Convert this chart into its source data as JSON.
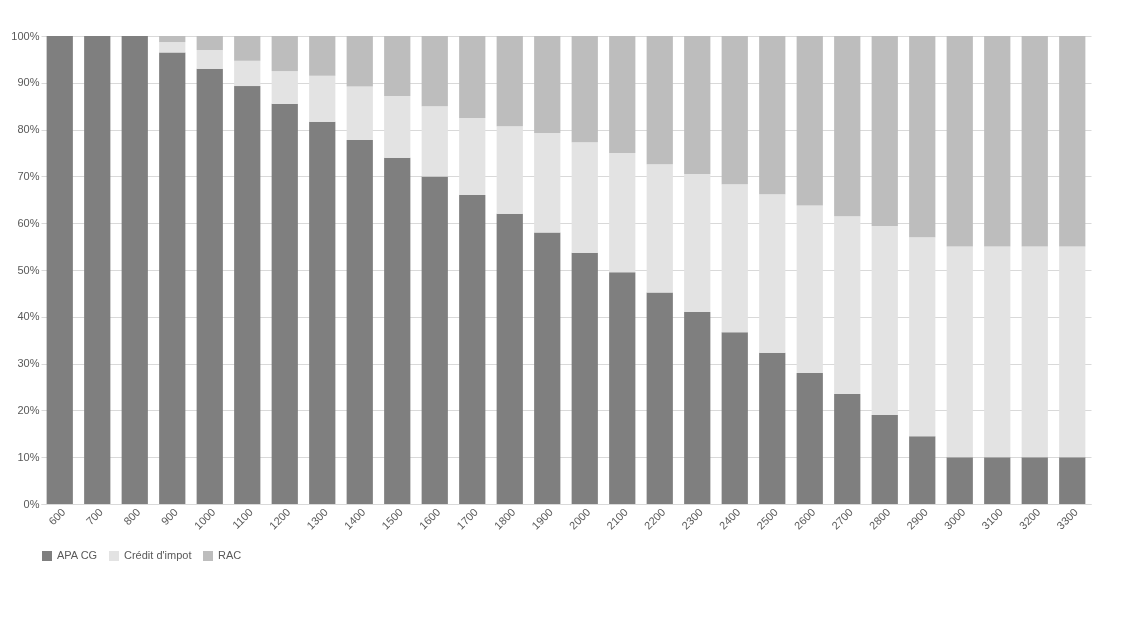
{
  "chart_data": {
    "type": "bar",
    "stacked": true,
    "categories": [
      "600",
      "700",
      "800",
      "900",
      "1000",
      "1100",
      "1200",
      "1300",
      "1400",
      "1500",
      "1600",
      "1700",
      "1800",
      "1900",
      "2000",
      "2100",
      "2200",
      "2300",
      "2400",
      "2500",
      "2600",
      "2700",
      "2800",
      "2900",
      "3000",
      "3100",
      "3200",
      "3300"
    ],
    "series": [
      {
        "name": "APA CG",
        "color": "#7f7f7f",
        "values": [
          100,
          100,
          100,
          96.5,
          93,
          89.3,
          85.5,
          81.7,
          77.8,
          74,
          70,
          66,
          62,
          58,
          53.7,
          49.5,
          45.2,
          41,
          36.7,
          32.3,
          28,
          23.5,
          19,
          14.5,
          10,
          10,
          10,
          10
        ]
      },
      {
        "name": "Crédit d'impot",
        "color": "#e3e3e3",
        "values": [
          0,
          0,
          0,
          2.2,
          4,
          5.4,
          7,
          9.8,
          11.4,
          13.2,
          15,
          16.5,
          18.7,
          21.3,
          23.6,
          25.5,
          27.4,
          29.5,
          31.6,
          33.9,
          35.8,
          38,
          40.4,
          42.5,
          45,
          45,
          45,
          45
        ]
      },
      {
        "name": "RAC",
        "color": "#bdbdbd",
        "values": [
          0,
          0,
          0,
          1.3,
          3,
          5.3,
          7.5,
          8.5,
          10.8,
          12.8,
          15,
          17.5,
          19.3,
          20.7,
          22.7,
          25,
          27.4,
          29.5,
          31.7,
          33.8,
          36.2,
          38.5,
          40.6,
          43,
          45,
          45,
          45,
          45
        ]
      }
    ],
    "ylim": [
      0,
      100
    ],
    "yticks": [
      {
        "value": 0,
        "label": "0%"
      },
      {
        "value": 10,
        "label": "10%"
      },
      {
        "value": 20,
        "label": "20%"
      },
      {
        "value": 30,
        "label": "30%"
      },
      {
        "value": 40,
        "label": "40%"
      },
      {
        "value": 50,
        "label": "50%"
      },
      {
        "value": 60,
        "label": "60%"
      },
      {
        "value": 70,
        "label": "70%"
      },
      {
        "value": 80,
        "label": "80%"
      },
      {
        "value": 90,
        "label": "90%"
      },
      {
        "value": 100,
        "label": "100%"
      }
    ],
    "grid": "y",
    "legend": "bottom"
  }
}
